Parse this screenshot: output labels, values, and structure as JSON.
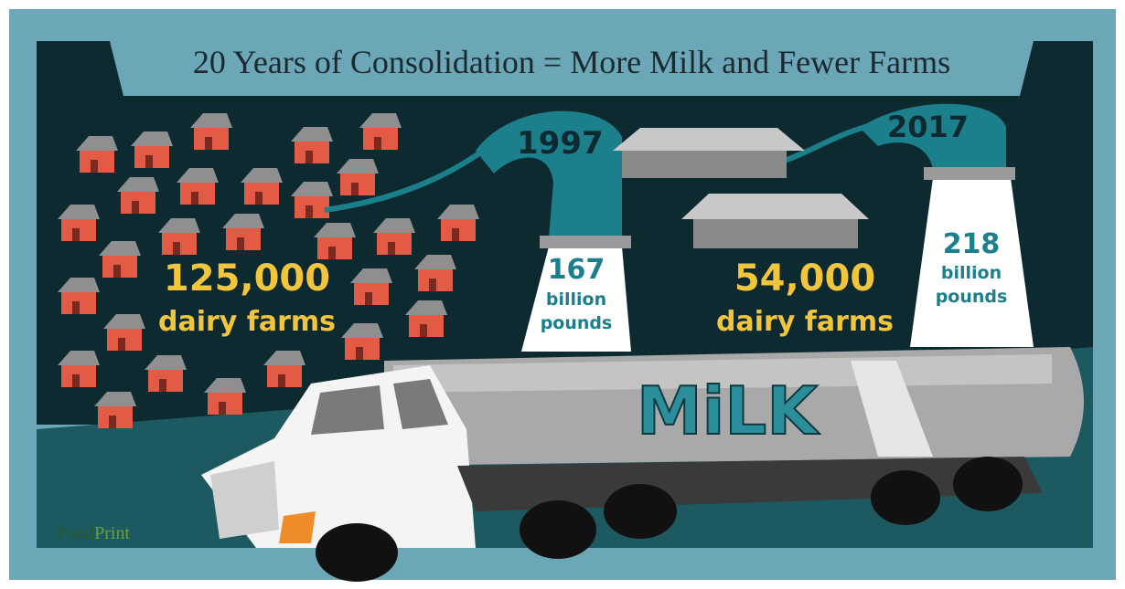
{
  "header": {
    "title": "20 Years of Consolidation = More Milk and Fewer Farms"
  },
  "left": {
    "year": "1997",
    "farms_count": "125,000",
    "farms_label": "dairy farms",
    "milk_amount": "167",
    "milk_unit_1": "billion",
    "milk_unit_2": "pounds"
  },
  "right": {
    "year": "2017",
    "farms_count": "54,000",
    "farms_label": "dairy farms",
    "milk_amount": "218",
    "milk_unit_1": "billion",
    "milk_unit_2": "pounds"
  },
  "truck": {
    "label": "MiLK"
  },
  "logo": {
    "part_1": "Food",
    "part_2": "Print"
  }
}
